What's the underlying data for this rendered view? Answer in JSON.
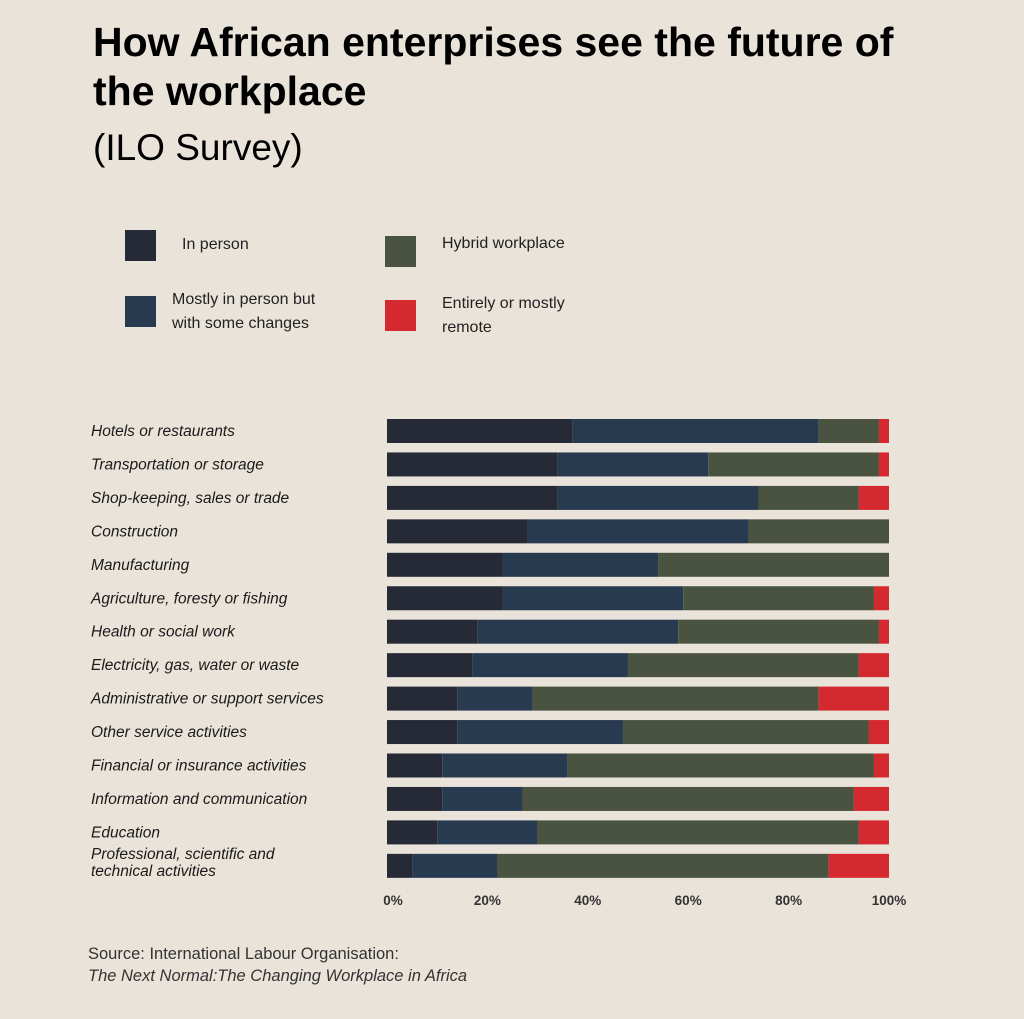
{
  "title": "How African enterprises see the future of the workplace",
  "subtitle": "(ILO Survey)",
  "legend": [
    {
      "label": "In person",
      "color": "#252a36"
    },
    {
      "label": "Mostly in person but\nwith some changes",
      "color": "#283a4f"
    },
    {
      "label": "Hybrid workplace",
      "color": "#4a5340"
    },
    {
      "label": "Entirely or mostly\nremote",
      "color": "#d42a2f"
    }
  ],
  "source": {
    "line1": "Source:  International Labour Organisation:",
    "line2": "The Next Normal:The Changing Workplace in Africa"
  },
  "chart_data": {
    "type": "bar",
    "orientation": "horizontal",
    "stacked": true,
    "title": "How African enterprises see the future of the workplace",
    "subtitle": "(ILO Survey)",
    "xlim": [
      0,
      100
    ],
    "xticks": [
      "0%",
      "20%",
      "40%",
      "60%",
      "80%",
      "100%"
    ],
    "categories": [
      "Hotels or restaurants",
      "Transportation or storage",
      "Shop-keeping, sales or trade",
      "Construction",
      "Manufacturing",
      "Agriculture, foresty or fishing",
      "Health or social work",
      "Electricity, gas, water or waste",
      "Administrative or support services",
      "Other service activities",
      "Financial or insurance activities",
      "Information and communication",
      "Education",
      "Professional, scientific and technical activities"
    ],
    "series": [
      {
        "name": "In person",
        "color": "#252a36",
        "values": [
          37,
          34,
          34,
          28,
          23,
          23,
          18,
          17,
          14,
          14,
          11,
          11,
          10,
          5
        ]
      },
      {
        "name": "Mostly in person but with some changes",
        "color": "#283a4f",
        "values": [
          49,
          30,
          40,
          44,
          31,
          36,
          40,
          31,
          15,
          33,
          25,
          16,
          20,
          17
        ]
      },
      {
        "name": "Hybrid workplace",
        "color": "#4a5340",
        "values": [
          12,
          34,
          20,
          28,
          46,
          38,
          40,
          46,
          57,
          49,
          61,
          66,
          64,
          66
        ]
      },
      {
        "name": "Entirely or mostly remote",
        "color": "#d42a2f",
        "values": [
          2,
          2,
          6,
          0,
          0,
          3,
          2,
          6,
          14,
          4,
          3,
          7,
          6,
          12
        ]
      }
    ]
  }
}
